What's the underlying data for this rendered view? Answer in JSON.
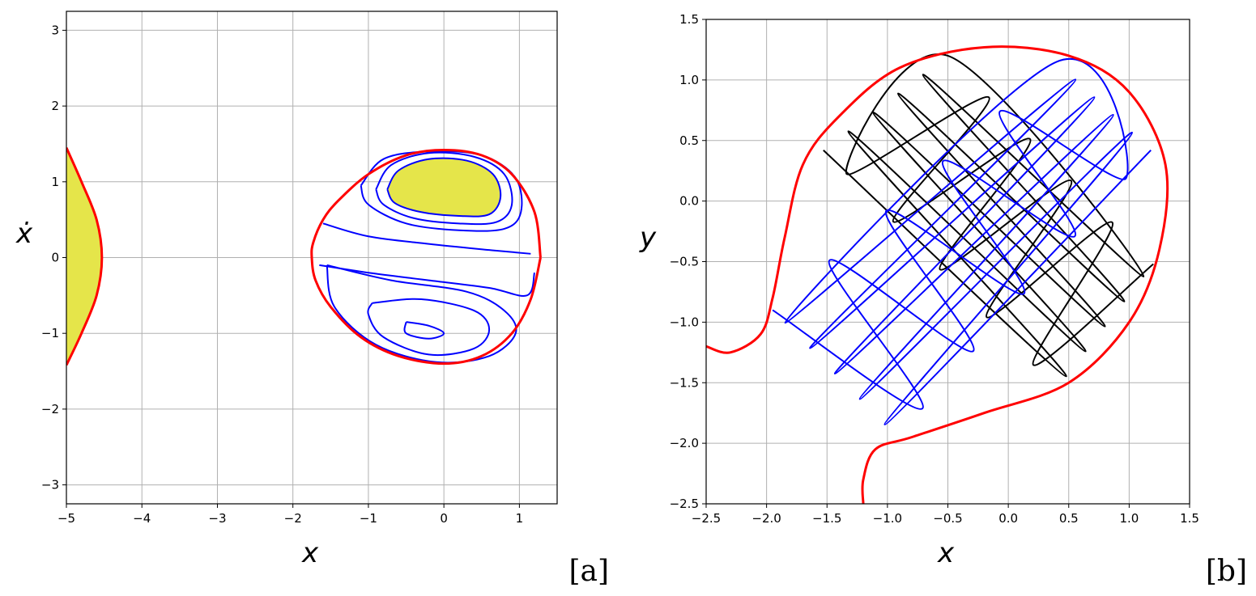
{
  "chart_data": [
    {
      "type": "line",
      "xlabel": "x",
      "ylabel": "ẋ",
      "panel_label": "[a]",
      "grid": true,
      "xlim": [
        -5,
        1.5
      ],
      "ylim": [
        -3.25,
        3.25
      ],
      "xticks": [
        {
          "value": -5,
          "label": "−5"
        },
        {
          "value": -4,
          "label": "−4"
        },
        {
          "value": -3,
          "label": "−3"
        },
        {
          "value": -2,
          "label": "−2"
        },
        {
          "value": -1,
          "label": "−1"
        },
        0,
        1
      ],
      "yticks": [
        {
          "value": -3,
          "label": "−3"
        },
        {
          "value": -2,
          "label": "−2"
        },
        {
          "value": -1,
          "label": "−1"
        },
        0,
        1,
        2,
        3
      ],
      "series": [
        {
          "color": "#ff0000",
          "fill": "#e5e54a",
          "x": [
            -5,
            -4.8,
            -4.6,
            -4.53,
            -4.6,
            -4.8,
            -5
          ],
          "y": [
            1.45,
            1.0,
            0.5,
            0,
            -0.5,
            -1.0,
            -1.42
          ]
        },
        {
          "color": "#0000ff",
          "fill": "#e5e54a",
          "x": [
            -0.75,
            -0.6,
            -0.2,
            0.3,
            0.65,
            0.75,
            0.6,
            0.2,
            -0.3,
            -0.65,
            -0.75
          ],
          "y": [
            0.9,
            1.15,
            1.3,
            1.28,
            1.1,
            0.8,
            0.57,
            0.55,
            0.6,
            0.72,
            0.9
          ]
        },
        {
          "color": "#0000ff",
          "x": [
            -0.9,
            -0.7,
            -0.2,
            0.4,
            0.8,
            0.9,
            0.7,
            0.2,
            -0.4,
            -0.8,
            -0.9
          ],
          "y": [
            0.9,
            1.22,
            1.38,
            1.33,
            1.1,
            0.7,
            0.47,
            0.45,
            0.52,
            0.7,
            0.9
          ]
        },
        {
          "color": "#0000ff",
          "x": [
            -1.1,
            -0.8,
            -0.2,
            0.5,
            0.95,
            1.02,
            0.8,
            0.2,
            -0.5,
            -1.0,
            -1.1
          ],
          "y": [
            0.95,
            1.3,
            1.4,
            1.35,
            1.05,
            0.6,
            0.38,
            0.36,
            0.45,
            0.7,
            0.95
          ]
        },
        {
          "color": "#0000ff",
          "x": [
            -1.6,
            -1.0,
            -0.2,
            0.6,
            1.15
          ],
          "y": [
            0.45,
            0.28,
            0.18,
            0.1,
            0.05
          ]
        },
        {
          "color": "#0000ff",
          "x": [
            -1.65,
            -1.0,
            -0.2,
            0.6,
            1.1,
            1.2
          ],
          "y": [
            -0.1,
            -0.2,
            -0.3,
            -0.4,
            -0.5,
            -0.2
          ]
        },
        {
          "color": "#0000ff",
          "x": [
            -0.5,
            -0.2,
            0,
            -0.2,
            -0.5,
            -0.5
          ],
          "y": [
            -0.85,
            -0.9,
            -1.0,
            -1.07,
            -1.0,
            -0.85
          ]
        },
        {
          "color": "#0000ff",
          "x": [
            -0.95,
            -0.3,
            0.4,
            0.6,
            0.4,
            -0.2,
            -0.8,
            -1.0,
            -0.95
          ],
          "y": [
            -0.6,
            -0.55,
            -0.7,
            -0.95,
            -1.2,
            -1.28,
            -1.05,
            -0.75,
            -0.6
          ]
        },
        {
          "color": "#0000ff",
          "x": [
            -1.55,
            -0.7,
            0.3,
            0.8,
            0.95,
            0.6,
            -0.1,
            -0.9,
            -1.45,
            -1.55
          ],
          "y": [
            -0.1,
            -0.3,
            -0.45,
            -0.7,
            -1.0,
            -1.3,
            -1.38,
            -1.15,
            -0.65,
            -0.1
          ]
        },
        {
          "color": "#ff0000",
          "x": [
            1.28,
            1.2,
            0.9,
            0.5,
            0,
            -0.5,
            -1.0,
            -1.4,
            -1.6,
            -1.73,
            -1.75,
            -1.7,
            -1.5,
            -1.1,
            -0.6,
            0,
            0.5,
            0.9,
            1.15,
            1.28
          ],
          "y": [
            0,
            0.6,
            1.1,
            1.35,
            1.42,
            1.35,
            1.1,
            0.75,
            0.5,
            0.2,
            0,
            -0.3,
            -0.65,
            -1.05,
            -1.3,
            -1.4,
            -1.3,
            -1.0,
            -0.55,
            0
          ]
        }
      ]
    },
    {
      "type": "line",
      "xlabel": "x",
      "ylabel": "y",
      "panel_label": "[b]",
      "grid": true,
      "xlim": [
        -2.5,
        1.5
      ],
      "ylim": [
        -2.5,
        1.5
      ],
      "xticks": [
        {
          "value": -2.5,
          "label": "−2.5"
        },
        {
          "value": -2,
          "label": "−2.0"
        },
        {
          "value": -1.5,
          "label": "−1.5"
        },
        {
          "value": -1,
          "label": "−1.0"
        },
        {
          "value": -0.5,
          "label": "−0.5"
        },
        {
          "value": 0,
          "label": "0.0"
        },
        0.5,
        {
          "value": 1,
          "label": "1.0"
        },
        1.5
      ],
      "yticks": [
        {
          "value": -2.5,
          "label": "−2.5"
        },
        {
          "value": -2,
          "label": "−2.0"
        },
        {
          "value": -1.5,
          "label": "−1.5"
        },
        {
          "value": -1,
          "label": "−1.0"
        },
        {
          "value": -0.5,
          "label": "−0.5"
        },
        {
          "value": 0,
          "label": "0.0"
        },
        0.5,
        {
          "value": 1,
          "label": "1.0"
        },
        1.5
      ],
      "series": [
        {
          "color": "#000000",
          "x": [
            -1.53,
            0.48,
            -1.324,
            0.64,
            -1.118,
            0.8,
            -0.912,
            0.96,
            -0.706,
            1.12,
            -0.5,
            -1.337,
            -0.16,
            -0.951,
            0.18,
            -0.565,
            0.52,
            -0.179,
            0.86,
            0.207,
            1.2
          ],
          "y": [
            0.42,
            -1.447,
            0.576,
            -1.241,
            0.732,
            -1.035,
            0.888,
            -0.829,
            1.044,
            -0.623,
            1.2,
            0.223,
            0.856,
            -0.171,
            0.512,
            -0.565,
            0.168,
            -0.959,
            -0.176,
            -1.353,
            -0.52
          ]
        },
        {
          "color": "#0000ff",
          "x": [
            -1.95,
            -0.71,
            -1.48,
            -0.29,
            -1.01,
            0.13,
            -0.54,
            0.55,
            -0.07,
            0.97,
            0.4,
            -1.847,
            0.556,
            -1.641,
            0.712,
            -1.435,
            0.868,
            -1.229,
            1.024,
            -1.023,
            1.18
          ],
          "y": [
            -0.9,
            -1.713,
            -0.49,
            -1.239,
            -0.08,
            -0.765,
            0.33,
            -0.291,
            0.74,
            0.183,
            1.15,
            -1.005,
            1.004,
            -1.215,
            0.858,
            -1.425,
            0.712,
            -1.635,
            0.566,
            -1.845,
            0.42
          ]
        },
        {
          "color": "#ff0000",
          "x": [
            -2.5,
            -2.3,
            -2.05,
            -1.95,
            -1.85,
            -1.7,
            -1.4,
            -0.9,
            -0.2,
            0.5,
            1.0,
            1.3,
            1.25,
            1.0,
            0.5,
            -0.2,
            -0.8,
            -1.1,
            -1.2,
            -1.2
          ],
          "y": [
            -1.2,
            -1.25,
            -1.1,
            -0.8,
            -0.3,
            0.3,
            0.7,
            1.1,
            1.27,
            1.2,
            0.9,
            0.3,
            -0.4,
            -1.0,
            -1.5,
            -1.75,
            -1.95,
            -2.05,
            -2.3,
            -2.5
          ]
        }
      ]
    }
  ]
}
